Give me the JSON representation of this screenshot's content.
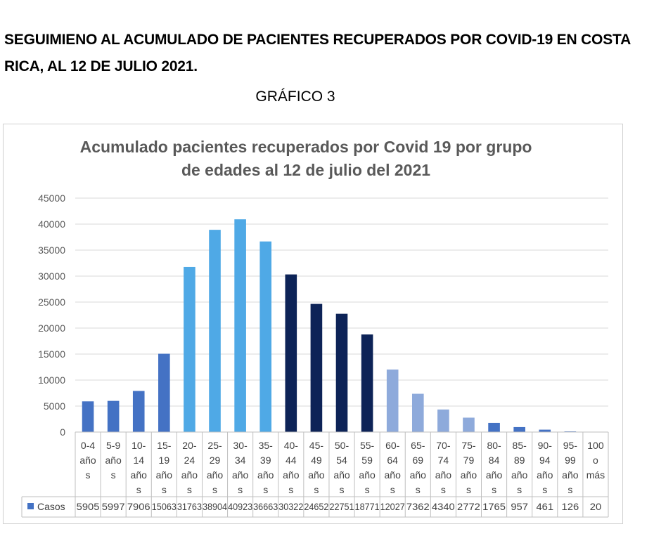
{
  "page": {
    "title": "SEGUIMIENO AL ACUMULADO DE PACIENTES RECUPERADOS POR COVID-19 EN COSTA RICA, AL 12 DE JULIO 2021.",
    "subtitle": "GRÁFICO 3"
  },
  "chart_data": {
    "type": "bar",
    "title_lines": [
      "Acumulado pacientes recuperados por Covid 19 por grupo",
      "de edades al 12 de julio del 2021"
    ],
    "categories": [
      "0-4 años",
      "5-9 años",
      "10-14 años",
      "15-19 años",
      "20-24 años",
      "25-29 años",
      "30-34 años",
      "35-39 años",
      "40-44 años",
      "45-49 años",
      "50-54 años",
      "55-59 años",
      "60-64 años",
      "65-69 años",
      "70-74 años",
      "75-79 años",
      "80-84 años",
      "85-89 años",
      "90-94 años",
      "95-99 años",
      "100 o más"
    ],
    "category_label_lines": [
      [
        "0-4",
        "año",
        "s"
      ],
      [
        "5-9",
        "año",
        "s"
      ],
      [
        "10-",
        "14",
        "año",
        "s"
      ],
      [
        "15-",
        "19",
        "año",
        "s"
      ],
      [
        "20-",
        "24",
        "año",
        "s"
      ],
      [
        "25-",
        "29",
        "año",
        "s"
      ],
      [
        "30-",
        "34",
        "año",
        "s"
      ],
      [
        "35-",
        "39",
        "año",
        "s"
      ],
      [
        "40-",
        "44",
        "año",
        "s"
      ],
      [
        "45-",
        "49",
        "año",
        "s"
      ],
      [
        "50-",
        "54",
        "año",
        "s"
      ],
      [
        "55-",
        "59",
        "año",
        "s"
      ],
      [
        "60-",
        "64",
        "año",
        "s"
      ],
      [
        "65-",
        "69",
        "año",
        "s"
      ],
      [
        "70-",
        "74",
        "año",
        "s"
      ],
      [
        "75-",
        "79",
        "año",
        "s"
      ],
      [
        "80-",
        "84",
        "año",
        "s"
      ],
      [
        "85-",
        "89",
        "año",
        "s"
      ],
      [
        "90-",
        "94",
        "año",
        "s"
      ],
      [
        "95-",
        "99",
        "año",
        "s"
      ],
      [
        "100",
        "o",
        "más"
      ]
    ],
    "series": [
      {
        "name": "Casos",
        "values": [
          5905,
          5997,
          7906,
          15063,
          31763,
          38904,
          40923,
          36663,
          30322,
          24652,
          22751,
          18771,
          12027,
          7362,
          4340,
          2772,
          1765,
          957,
          461,
          126,
          20
        ]
      }
    ],
    "table_value_labels": [
      "5905",
      "5997",
      "7906",
      "15063",
      "31763",
      "38904",
      "40923",
      "36663",
      "30322",
      "24652",
      "22751",
      "18771",
      "12027",
      "7362",
      "4340",
      "2772",
      "1765",
      "957",
      "461",
      "126",
      "20"
    ],
    "ylim": [
      0,
      45000
    ],
    "yticks": [
      0,
      5000,
      10000,
      15000,
      20000,
      25000,
      30000,
      35000,
      40000,
      45000
    ],
    "grid": true,
    "legend": "data-table",
    "bar_colors": [
      "#4472c4",
      "#4472c4",
      "#4472c4",
      "#4472c4",
      "#4fa9e6",
      "#4fa9e6",
      "#4fa9e6",
      "#4fa9e6",
      "#0d2357",
      "#0d2357",
      "#0d2357",
      "#0d2357",
      "#8eaadb",
      "#8eaadb",
      "#8eaadb",
      "#8eaadb",
      "#4472c4",
      "#4472c4",
      "#4472c4",
      "#4472c4",
      "#4472c4"
    ],
    "legend_color": "#4472c4"
  }
}
